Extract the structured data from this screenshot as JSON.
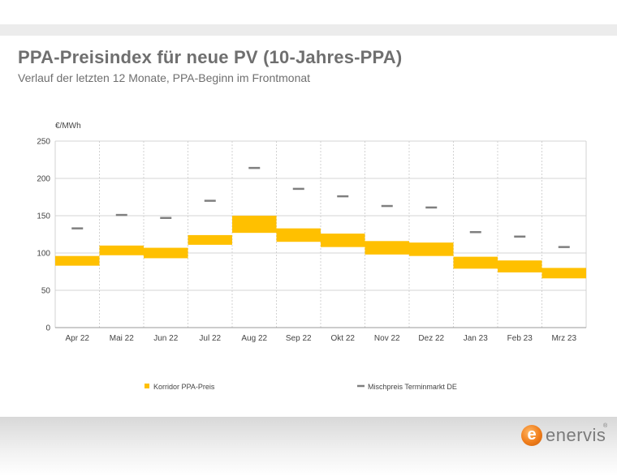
{
  "header": {
    "title": "PPA-Preisindex für neue PV (10-Jahres-PPA)",
    "subtitle": "Verlauf der letzten 12 Monate, PPA-Beginn im Frontmonat"
  },
  "colors": {
    "corridor": "#FFC000",
    "marker": "#7f7f7f",
    "grid": "#c8c8c8",
    "brand": "#f07d1a"
  },
  "chart_data": {
    "type": "bar",
    "unit_label": "€/MWh",
    "ylim": [
      0,
      250
    ],
    "yticks": [
      0,
      50,
      100,
      150,
      200,
      250
    ],
    "grid": true,
    "legend_position": "bottom",
    "categories": [
      "Apr 22",
      "Mai 22",
      "Jun 22",
      "Jul 22",
      "Aug 22",
      "Sep 22",
      "Okt 22",
      "Nov 22",
      "Dez 22",
      "Jan 23",
      "Feb 23",
      "Mrz 23"
    ],
    "series": [
      {
        "name": "Korridor PPA-Preis",
        "kind": "range",
        "low": [
          83,
          97,
          93,
          111,
          127,
          115,
          108,
          98,
          96,
          79,
          74,
          66
        ],
        "high": [
          96,
          110,
          107,
          124,
          150,
          133,
          126,
          116,
          114,
          95,
          90,
          80
        ]
      },
      {
        "name": "Mischpreis Terminmarkt DE",
        "kind": "marker",
        "values": [
          133,
          151,
          147,
          170,
          214,
          186,
          176,
          163,
          161,
          128,
          122,
          108
        ]
      }
    ]
  },
  "logo": {
    "text": "enervis",
    "mark": "e",
    "sup": "®"
  }
}
